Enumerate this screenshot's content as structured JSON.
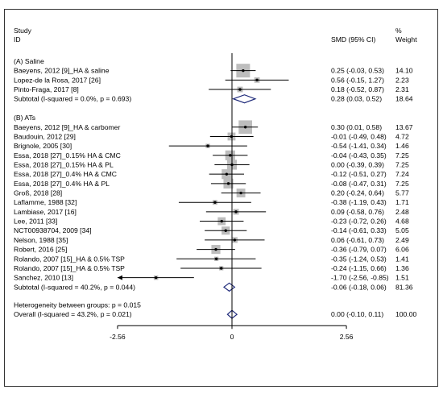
{
  "header": {
    "study_label": "Study",
    "id_label": "ID",
    "smd_label": "SMD (95% CI)",
    "pct_label": "%",
    "weight_label": "Weight"
  },
  "chart_data": {
    "type": "forest",
    "xlim": [
      -2.56,
      2.56
    ],
    "x_ticks": [
      -2.56,
      0,
      2.56
    ],
    "x_tick_labels": [
      "-2.56",
      "0",
      "2.56"
    ],
    "reference_line": 0,
    "groups": [
      {
        "label": "(A) Saline",
        "studies": [
          {
            "id": "Baeyens, 2012 [9]_HA & saline",
            "smd": 0.25,
            "lo": -0.03,
            "hi": 0.53,
            "ci_text": "0.25 (-0.03, 0.53)",
            "weight": 14.1,
            "weight_text": "14.10"
          },
          {
            "id": "Lopez-de la Rosa, 2017 [26]",
            "smd": 0.56,
            "lo": -0.15,
            "hi": 1.27,
            "ci_text": "0.56 (-0.15, 1.27)",
            "weight": 2.23,
            "weight_text": "2.23"
          },
          {
            "id": "Pinto-Fraga, 2017 [8]",
            "smd": 0.18,
            "lo": -0.52,
            "hi": 0.87,
            "ci_text": "0.18 (-0.52, 0.87)",
            "weight": 2.31,
            "weight_text": "2.31"
          }
        ],
        "subtotal": {
          "label": "Subtotal  (I-squared = 0.0%, p = 0.693)",
          "smd": 0.28,
          "lo": 0.03,
          "hi": 0.52,
          "ci_text": "0.28 (0.03, 0.52)",
          "weight_text": "18.64"
        }
      },
      {
        "label": "(B) ATs",
        "studies": [
          {
            "id": "Baeyens, 2012 [9]_HA & carbomer",
            "smd": 0.3,
            "lo": 0.01,
            "hi": 0.58,
            "ci_text": "0.30 (0.01, 0.58)",
            "weight": 13.67,
            "weight_text": "13.67"
          },
          {
            "id": "Baudouin, 2012 [29]",
            "smd": -0.01,
            "lo": -0.49,
            "hi": 0.48,
            "ci_text": "-0.01 (-0.49, 0.48)",
            "weight": 4.72,
            "weight_text": "4.72"
          },
          {
            "id": "Brignole, 2005 [30]",
            "smd": -0.54,
            "lo": -1.41,
            "hi": 0.34,
            "ci_text": "-0.54 (-1.41, 0.34)",
            "weight": 1.46,
            "weight_text": "1.46"
          },
          {
            "id": "Essa, 2018 [27]_0.15% HA & CMC",
            "smd": -0.04,
            "lo": -0.43,
            "hi": 0.35,
            "ci_text": "-0.04 (-0.43, 0.35)",
            "weight": 7.25,
            "weight_text": "7.25"
          },
          {
            "id": "Essa, 2018 [27]_0.15% HA & PL",
            "smd": 0.0,
            "lo": -0.39,
            "hi": 0.39,
            "ci_text": "0.00 (-0.39, 0.39)",
            "weight": 7.25,
            "weight_text": "7.25"
          },
          {
            "id": "Essa, 2018 [27]_0.4% HA & CMC",
            "smd": -0.12,
            "lo": -0.51,
            "hi": 0.27,
            "ci_text": "-0.12 (-0.51, 0.27)",
            "weight": 7.24,
            "weight_text": "7.24"
          },
          {
            "id": "Essa, 2018 [27]_0.4% HA & PL",
            "smd": -0.08,
            "lo": -0.47,
            "hi": 0.31,
            "ci_text": "-0.08 (-0.47, 0.31)",
            "weight": 7.25,
            "weight_text": "7.25"
          },
          {
            "id": "Groß, 2018 [28]",
            "smd": 0.2,
            "lo": -0.24,
            "hi": 0.64,
            "ci_text": "0.20 (-0.24, 0.64)",
            "weight": 5.77,
            "weight_text": "5.77"
          },
          {
            "id": "Laflamme, 1988 [32]",
            "smd": -0.38,
            "lo": -1.19,
            "hi": 0.43,
            "ci_text": "-0.38 (-1.19, 0.43)",
            "weight": 1.71,
            "weight_text": "1.71"
          },
          {
            "id": "Lambiase, 2017 [16]",
            "smd": 0.09,
            "lo": -0.58,
            "hi": 0.76,
            "ci_text": "0.09 (-0.58, 0.76)",
            "weight": 2.48,
            "weight_text": "2.48"
          },
          {
            "id": "Lee, 2011 [33]",
            "smd": -0.23,
            "lo": -0.72,
            "hi": 0.26,
            "ci_text": "-0.23 (-0.72, 0.26)",
            "weight": 4.68,
            "weight_text": "4.68"
          },
          {
            "id": "NCT00938704, 2009 [34]",
            "smd": -0.14,
            "lo": -0.61,
            "hi": 0.33,
            "ci_text": "-0.14 (-0.61, 0.33)",
            "weight": 5.05,
            "weight_text": "5.05"
          },
          {
            "id": "Nelson, 1988 [35]",
            "smd": 0.06,
            "lo": -0.61,
            "hi": 0.73,
            "ci_text": "0.06 (-0.61, 0.73)",
            "weight": 2.49,
            "weight_text": "2.49"
          },
          {
            "id": "Robert, 2016 [25]",
            "smd": -0.36,
            "lo": -0.79,
            "hi": 0.07,
            "ci_text": "-0.36 (-0.79, 0.07)",
            "weight": 6.06,
            "weight_text": "6.06"
          },
          {
            "id": "Rolando, 2007 [15]_HA & 0.5% TSP",
            "smd": -0.35,
            "lo": -1.24,
            "hi": 0.53,
            "ci_text": "-0.35 (-1.24, 0.53)",
            "weight": 1.41,
            "weight_text": "1.41"
          },
          {
            "id": "Rolando, 2007 [15]_HA & 0.5% TSP",
            "smd": -0.24,
            "lo": -1.15,
            "hi": 0.66,
            "ci_text": "-0.24 (-1.15, 0.66)",
            "weight": 1.36,
            "weight_text": "1.36"
          },
          {
            "id": "Sanchez, 2010 [13]",
            "smd": -1.7,
            "lo": -2.56,
            "hi": -0.85,
            "ci_text": "-1.70 (-2.56, -0.85)",
            "weight": 1.51,
            "weight_text": "1.51",
            "arrow_left": true
          }
        ],
        "subtotal": {
          "label": "Subtotal  (I-squared = 40.2%, p = 0.044)",
          "smd": -0.06,
          "lo": -0.18,
          "hi": 0.06,
          "ci_text": "-0.06 (-0.18, 0.06)",
          "weight_text": "81.36"
        }
      }
    ],
    "heterogeneity_text": "Heterogeneity between groups: p = 0.015",
    "overall": {
      "label": "Overall  (I-squared = 43.2%, p = 0.021)",
      "smd": 0.0,
      "lo": -0.1,
      "hi": 0.11,
      "ci_text": "0.00 (-0.10, 0.11)",
      "weight_text": "100.00"
    },
    "colors": {
      "box": "#bdbdbd",
      "diamond": "#1f2a7a",
      "line": "#000000"
    }
  }
}
